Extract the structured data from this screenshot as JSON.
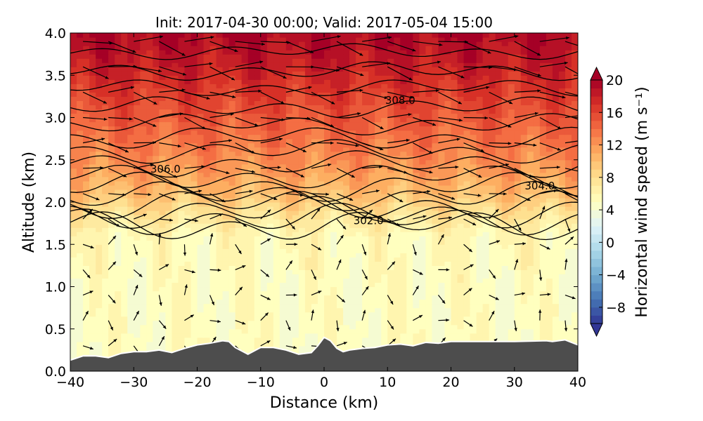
{
  "chart_data": {
    "type": "heatmap",
    "title": "Init: 2017-04-30 00:00; Valid: 2017-05-04 15:00",
    "xlabel": "Distance (km)",
    "ylabel": "Altitude (km)",
    "xlim": [
      -40,
      40
    ],
    "ylim": [
      0.0,
      4.0
    ],
    "x_ticks": [
      -40,
      -30,
      -20,
      -10,
      0,
      10,
      20,
      30,
      40
    ],
    "x_tick_labels": [
      "−40",
      "−30",
      "−20",
      "−10",
      "0",
      "10",
      "20",
      "30",
      "40"
    ],
    "y_ticks": [
      0.0,
      0.5,
      1.0,
      1.5,
      2.0,
      2.5,
      3.0,
      3.5,
      4.0
    ],
    "y_tick_labels": [
      "0.0",
      "0.5",
      "1.0",
      "1.5",
      "2.0",
      "2.5",
      "3.0",
      "3.5",
      "4.0"
    ],
    "colorbar": {
      "label": "Horizontal wind speed (m s⁻¹)",
      "range": [
        -10,
        20
      ],
      "ticks": [
        20,
        16,
        12,
        8,
        4,
        0,
        -4,
        -8
      ],
      "tick_labels": [
        "20",
        "16",
        "12",
        "8",
        "4",
        "0",
        "−4",
        "−8"
      ],
      "extend": "both",
      "colormap": "RdYlBu_r",
      "colors_high_to_low": [
        "#a50026",
        "#d73027",
        "#f46d43",
        "#fdae61",
        "#fee090",
        "#ffffbf",
        "#e0f3f8",
        "#abd9e9",
        "#74add1",
        "#4575b4",
        "#313695"
      ]
    },
    "wind_speed_profile": {
      "altitude_km": [
        0.3,
        1.0,
        1.6,
        1.9,
        2.1,
        2.4,
        2.8,
        3.2,
        3.6,
        4.0
      ],
      "speed_ms": [
        5,
        5,
        5.5,
        8,
        10,
        12,
        14,
        16,
        18,
        19.5
      ]
    },
    "terrain": {
      "x": [
        -40,
        -38,
        -36,
        -34,
        -32,
        -30,
        -28,
        -26,
        -24,
        -22,
        -20,
        -18,
        -16,
        -15,
        -14,
        -12,
        -10,
        -8,
        -6,
        -4,
        -2,
        -1,
        0,
        1,
        2,
        3,
        4,
        6,
        8,
        10,
        12,
        14,
        16,
        18,
        20,
        25,
        30,
        35,
        36,
        38,
        40
      ],
      "y": [
        0.13,
        0.18,
        0.18,
        0.16,
        0.21,
        0.23,
        0.23,
        0.25,
        0.22,
        0.27,
        0.31,
        0.33,
        0.36,
        0.35,
        0.28,
        0.2,
        0.28,
        0.28,
        0.25,
        0.2,
        0.22,
        0.3,
        0.4,
        0.36,
        0.27,
        0.23,
        0.25,
        0.27,
        0.28,
        0.31,
        0.32,
        0.3,
        0.34,
        0.33,
        0.35,
        0.35,
        0.35,
        0.36,
        0.35,
        0.37,
        0.31
      ],
      "color": "#4d4d4d"
    },
    "contour_labels": [
      {
        "text": "308.0",
        "x": 12,
        "y": 3.16
      },
      {
        "text": "306.0",
        "x": -25,
        "y": 2.35
      },
      {
        "text": "304.0",
        "x": 34,
        "y": 2.15
      },
      {
        "text": "302.0",
        "x": 7,
        "y": 1.74
      }
    ],
    "potential_temperature_contours_km": [
      {
        "base": 1.72,
        "amp": 0.12
      },
      {
        "base": 1.8,
        "amp": 0.12
      },
      {
        "base": 1.88,
        "amp": 0.12
      },
      {
        "base": 1.97,
        "amp": 0.12
      },
      {
        "base": 2.07,
        "amp": 0.11
      },
      {
        "base": 2.18,
        "amp": 0.11
      },
      {
        "base": 2.3,
        "amp": 0.1
      },
      {
        "base": 2.45,
        "amp": 0.1
      },
      {
        "base": 2.6,
        "amp": 0.09
      },
      {
        "base": 2.76,
        "amp": 0.09
      },
      {
        "base": 2.92,
        "amp": 0.08
      },
      {
        "base": 3.12,
        "amp": 0.08
      },
      {
        "base": 3.35,
        "amp": 0.07
      },
      {
        "base": 3.55,
        "amp": 0.07
      },
      {
        "base": 3.78,
        "amp": 0.06
      }
    ]
  }
}
